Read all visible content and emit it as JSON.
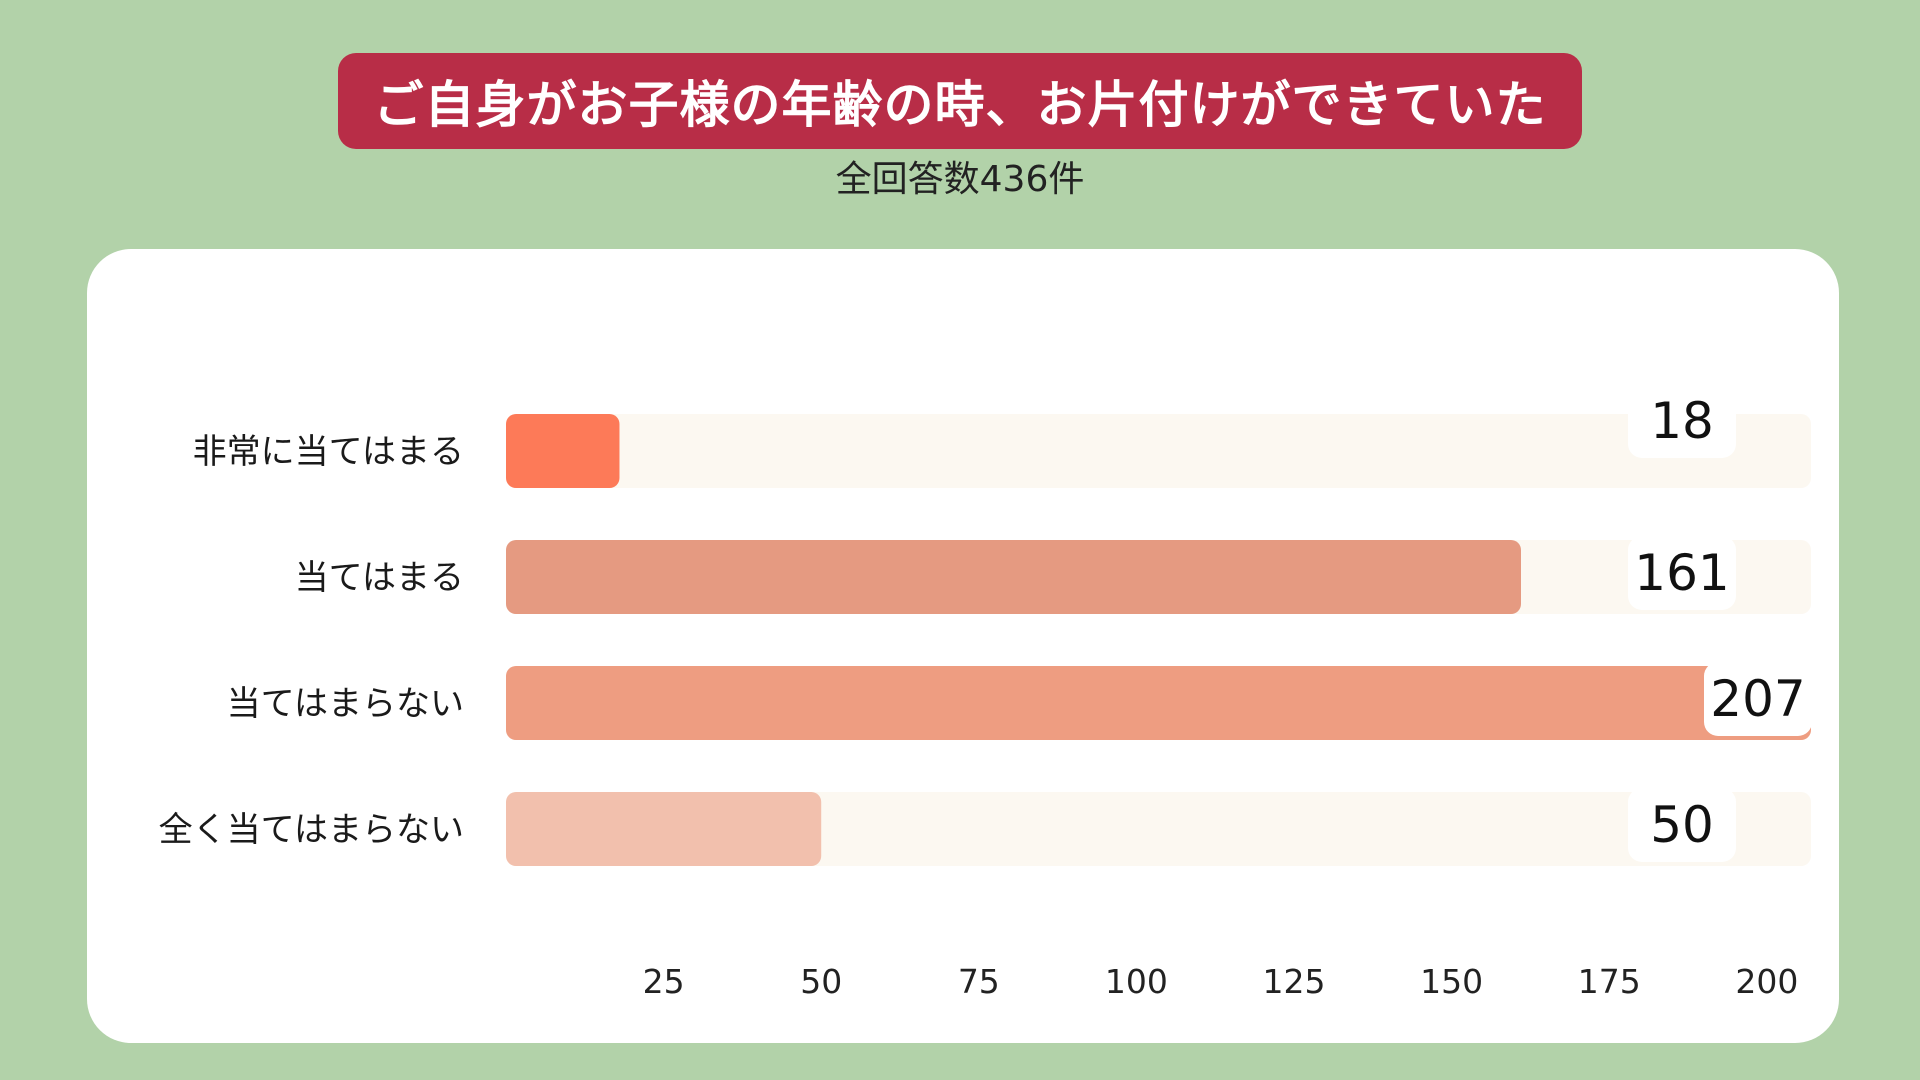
{
  "header": {
    "title": "ご自身がお子様の年齢の時、お片付けができていた",
    "subtitle": "全回答数436件"
  },
  "colors": {
    "background": "#b2d2a9",
    "banner": "#b82d47",
    "track": "#fcf8f1",
    "bars": [
      "#fd7a58",
      "#e59a81",
      "#ee9d81",
      "#f2c0ad"
    ]
  },
  "chart_data": {
    "type": "bar",
    "orientation": "horizontal",
    "categories": [
      "非常に当てはまる",
      "当てはまる",
      "当てはまらない",
      "全く当てはまらない"
    ],
    "values": [
      18,
      161,
      207,
      50
    ],
    "xticks": [
      25,
      50,
      75,
      100,
      125,
      150,
      175,
      200
    ],
    "xlim": [
      0,
      207
    ],
    "grid": false,
    "legend": "none"
  }
}
